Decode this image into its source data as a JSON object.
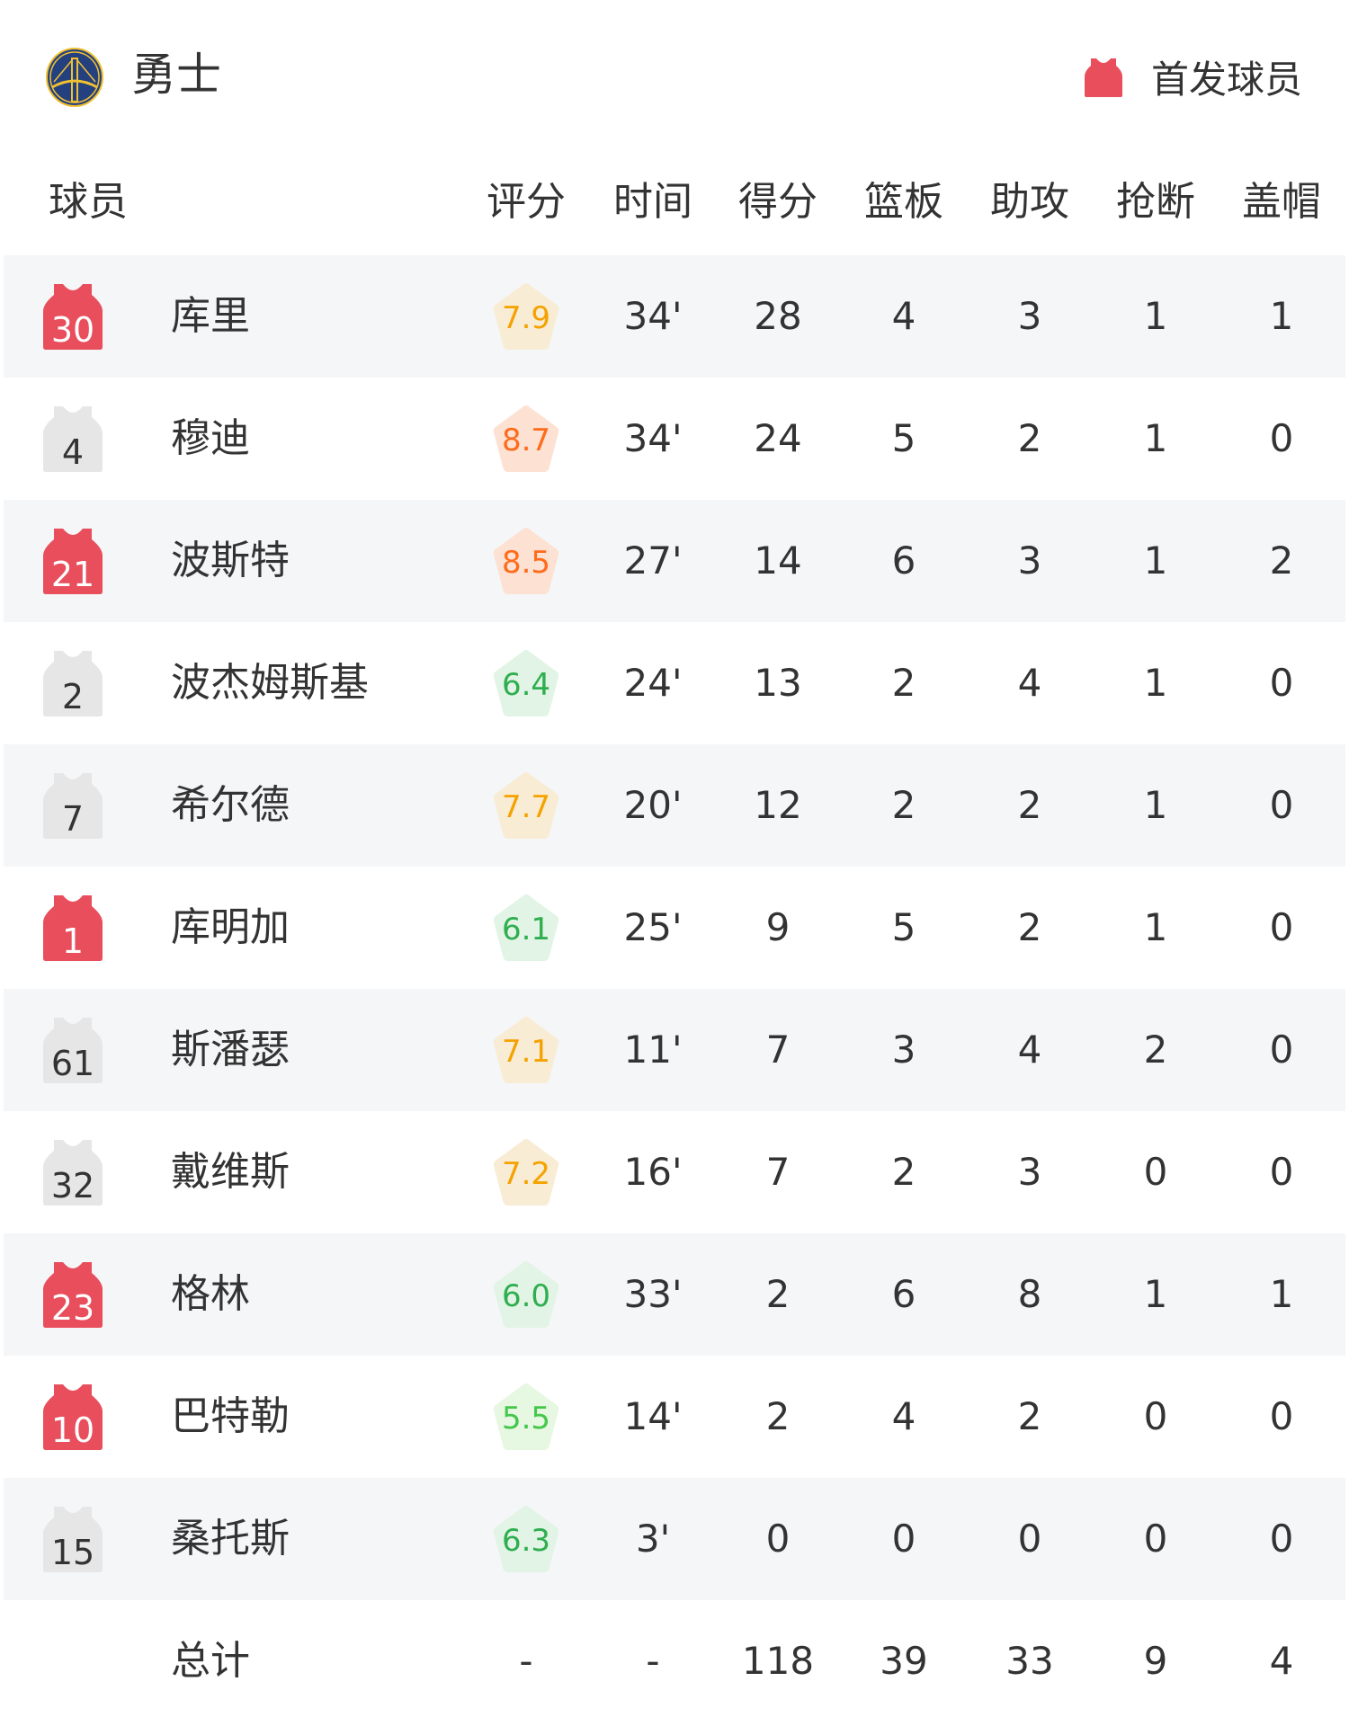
{
  "team": {
    "name": "勇士",
    "logo": "warriors-bridge-logo"
  },
  "legend": {
    "label": "首发球员",
    "icon": "jersey-icon",
    "color": "#e84e5c"
  },
  "columns": [
    "球员",
    "评分",
    "时间",
    "得分",
    "篮板",
    "助攻",
    "抢断",
    "盖帽"
  ],
  "colors": {
    "starter_jersey": "#e84e5c",
    "bench_jersey": "#e6e6e6",
    "row_stripe": "#f5f6f8"
  },
  "players": [
    {
      "number": "30",
      "name": "库里",
      "starter": true,
      "rating": "7.9",
      "time": "34'",
      "pts": "28",
      "reb": "4",
      "ast": "3",
      "stl": "1",
      "blk": "1"
    },
    {
      "number": "4",
      "name": "穆迪",
      "starter": false,
      "rating": "8.7",
      "time": "34'",
      "pts": "24",
      "reb": "5",
      "ast": "2",
      "stl": "1",
      "blk": "0"
    },
    {
      "number": "21",
      "name": "波斯特",
      "starter": true,
      "rating": "8.5",
      "time": "27'",
      "pts": "14",
      "reb": "6",
      "ast": "3",
      "stl": "1",
      "blk": "2"
    },
    {
      "number": "2",
      "name": "波杰姆斯基",
      "starter": false,
      "rating": "6.4",
      "time": "24'",
      "pts": "13",
      "reb": "2",
      "ast": "4",
      "stl": "1",
      "blk": "0"
    },
    {
      "number": "7",
      "name": "希尔德",
      "starter": false,
      "rating": "7.7",
      "time": "20'",
      "pts": "12",
      "reb": "2",
      "ast": "2",
      "stl": "1",
      "blk": "0"
    },
    {
      "number": "1",
      "name": "库明加",
      "starter": true,
      "rating": "6.1",
      "time": "25'",
      "pts": "9",
      "reb": "5",
      "ast": "2",
      "stl": "1",
      "blk": "0"
    },
    {
      "number": "61",
      "name": "斯潘瑟",
      "starter": false,
      "rating": "7.1",
      "time": "11'",
      "pts": "7",
      "reb": "3",
      "ast": "4",
      "stl": "2",
      "blk": "0"
    },
    {
      "number": "32",
      "name": "戴维斯",
      "starter": false,
      "rating": "7.2",
      "time": "16'",
      "pts": "7",
      "reb": "2",
      "ast": "3",
      "stl": "0",
      "blk": "0"
    },
    {
      "number": "23",
      "name": "格林",
      "starter": true,
      "rating": "6.0",
      "time": "33'",
      "pts": "2",
      "reb": "6",
      "ast": "8",
      "stl": "1",
      "blk": "1"
    },
    {
      "number": "10",
      "name": "巴特勒",
      "starter": true,
      "rating": "5.5",
      "time": "14'",
      "pts": "2",
      "reb": "4",
      "ast": "2",
      "stl": "0",
      "blk": "0"
    },
    {
      "number": "15",
      "name": "桑托斯",
      "starter": false,
      "rating": "6.3",
      "time": "3'",
      "pts": "0",
      "reb": "0",
      "ast": "0",
      "stl": "0",
      "blk": "0"
    }
  ],
  "total": {
    "label": "总计",
    "rating": "-",
    "time": "-",
    "pts": "118",
    "reb": "39",
    "ast": "33",
    "stl": "9",
    "blk": "4"
  }
}
